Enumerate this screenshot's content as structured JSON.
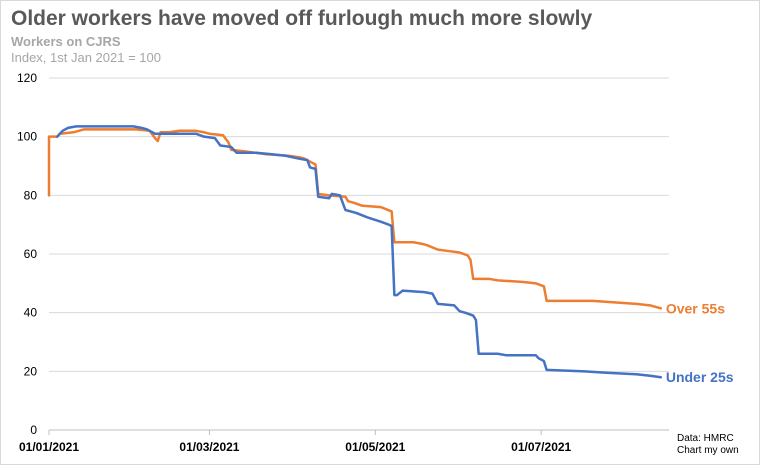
{
  "title": "Older workers have moved off furlough much more slowly",
  "subtitle": "Workers on CJRS",
  "index_note": "Index, 1st Jan 2021 = 100",
  "source_line1": "Data: HMRC",
  "source_line2": "Chart my own",
  "colors": {
    "over55": "#ED7D31",
    "under25": "#4472C4",
    "grid": "#d9d9d9",
    "axis": "#bfbfbf"
  },
  "chart_data": {
    "type": "line",
    "title": "Older workers have moved off furlough much more slowly",
    "subtitle": "Workers on CJRS",
    "ylabel": "Index, 1st Jan 2021 = 100",
    "ylim": [
      0,
      120
    ],
    "yticks": [
      0,
      20,
      40,
      60,
      80,
      100,
      120
    ],
    "xlim": [
      "2021-01-01",
      "2021-08-17"
    ],
    "xticks": [
      {
        "date": "2021-01-01",
        "label": "01/01/2021"
      },
      {
        "date": "2021-03-01",
        "label": "01/03/2021"
      },
      {
        "date": "2021-05-01",
        "label": "01/05/2021"
      },
      {
        "date": "2021-07-01",
        "label": "01/07/2021"
      }
    ],
    "grid": true,
    "legend": "direct labels at right",
    "series": [
      {
        "name": "Over 55s",
        "color": "#ED7D31",
        "points": [
          [
            "2021-01-01",
            80
          ],
          [
            "2021-01-01",
            100
          ],
          [
            "2021-01-04",
            100
          ],
          [
            "2021-01-05",
            101
          ],
          [
            "2021-01-10",
            101.5
          ],
          [
            "2021-01-14",
            102.5
          ],
          [
            "2021-02-02",
            102.5
          ],
          [
            "2021-02-07",
            102
          ],
          [
            "2021-02-09",
            99.5
          ],
          [
            "2021-02-10",
            98.5
          ],
          [
            "2021-02-11",
            101.5
          ],
          [
            "2021-02-14",
            101.5
          ],
          [
            "2021-02-18",
            102
          ],
          [
            "2021-02-24",
            102
          ],
          [
            "2021-02-27",
            101.5
          ],
          [
            "2021-03-01",
            101
          ],
          [
            "2021-03-06",
            100.5
          ],
          [
            "2021-03-08",
            98
          ],
          [
            "2021-03-09",
            95.5
          ],
          [
            "2021-03-14",
            95
          ],
          [
            "2021-03-18",
            94.5
          ],
          [
            "2021-03-22",
            94
          ],
          [
            "2021-03-30",
            93.5
          ],
          [
            "2021-04-03",
            93
          ],
          [
            "2021-04-05",
            92.5
          ],
          [
            "2021-04-08",
            91
          ],
          [
            "2021-04-09",
            90.5
          ],
          [
            "2021-04-10",
            80.5
          ],
          [
            "2021-04-14",
            80
          ],
          [
            "2021-04-20",
            79.5
          ],
          [
            "2021-04-21",
            78
          ],
          [
            "2021-04-23",
            77.5
          ],
          [
            "2021-04-26",
            76.5
          ],
          [
            "2021-05-03",
            76
          ],
          [
            "2021-05-07",
            74.5
          ],
          [
            "2021-05-08",
            64
          ],
          [
            "2021-05-15",
            64
          ],
          [
            "2021-05-18",
            63.5
          ],
          [
            "2021-05-20",
            63
          ],
          [
            "2021-05-24",
            61.5
          ],
          [
            "2021-05-28",
            61
          ],
          [
            "2021-06-01",
            60.5
          ],
          [
            "2021-06-04",
            59.5
          ],
          [
            "2021-06-05",
            58
          ],
          [
            "2021-06-06",
            51.5
          ],
          [
            "2021-06-12",
            51.5
          ],
          [
            "2021-06-15",
            51
          ],
          [
            "2021-06-24",
            50.5
          ],
          [
            "2021-06-29",
            50
          ],
          [
            "2021-07-02",
            49
          ],
          [
            "2021-07-03",
            44
          ],
          [
            "2021-07-20",
            44
          ],
          [
            "2021-07-28",
            43.5
          ],
          [
            "2021-08-05",
            43
          ],
          [
            "2021-08-10",
            42.5
          ],
          [
            "2021-08-14",
            41.5
          ]
        ]
      },
      {
        "name": "Under 25s",
        "color": "#4472C4",
        "points": [
          [
            "2021-01-04",
            100
          ],
          [
            "2021-01-06",
            102
          ],
          [
            "2021-01-08",
            103
          ],
          [
            "2021-01-11",
            103.5
          ],
          [
            "2021-01-14",
            103.5
          ],
          [
            "2021-02-01",
            103.5
          ],
          [
            "2021-02-04",
            103
          ],
          [
            "2021-02-06",
            102.5
          ],
          [
            "2021-02-09",
            101
          ],
          [
            "2021-02-12",
            101
          ],
          [
            "2021-02-24",
            101
          ],
          [
            "2021-02-27",
            100
          ],
          [
            "2021-03-03",
            99.5
          ],
          [
            "2021-03-05",
            97
          ],
          [
            "2021-03-09",
            96.5
          ],
          [
            "2021-03-11",
            94.5
          ],
          [
            "2021-03-18",
            94.5
          ],
          [
            "2021-03-24",
            94
          ],
          [
            "2021-03-29",
            93.5
          ],
          [
            "2021-04-03",
            92.5
          ],
          [
            "2021-04-06",
            92
          ],
          [
            "2021-04-07",
            89.5
          ],
          [
            "2021-04-09",
            89
          ],
          [
            "2021-04-10",
            79.5
          ],
          [
            "2021-04-14",
            79
          ],
          [
            "2021-04-15",
            80.5
          ],
          [
            "2021-04-18",
            80
          ],
          [
            "2021-04-20",
            75
          ],
          [
            "2021-04-24",
            74
          ],
          [
            "2021-04-28",
            72.5
          ],
          [
            "2021-05-03",
            71
          ],
          [
            "2021-05-06",
            70
          ],
          [
            "2021-05-07",
            69.5
          ],
          [
            "2021-05-08",
            46
          ],
          [
            "2021-05-09",
            46
          ],
          [
            "2021-05-11",
            47.5
          ],
          [
            "2021-05-19",
            47
          ],
          [
            "2021-05-22",
            46.5
          ],
          [
            "2021-05-24",
            43
          ],
          [
            "2021-05-30",
            42.5
          ],
          [
            "2021-06-01",
            40.5
          ],
          [
            "2021-06-03",
            40
          ],
          [
            "2021-06-06",
            39
          ],
          [
            "2021-06-07",
            37.5
          ],
          [
            "2021-06-08",
            26
          ],
          [
            "2021-06-15",
            26
          ],
          [
            "2021-06-18",
            25.5
          ],
          [
            "2021-06-29",
            25.5
          ],
          [
            "2021-06-30",
            24.5
          ],
          [
            "2021-07-02",
            23.5
          ],
          [
            "2021-07-03",
            20.5
          ],
          [
            "2021-07-17",
            20
          ],
          [
            "2021-07-25",
            19.5
          ],
          [
            "2021-08-05",
            19
          ],
          [
            "2021-08-10",
            18.5
          ],
          [
            "2021-08-14",
            18
          ]
        ]
      }
    ]
  }
}
